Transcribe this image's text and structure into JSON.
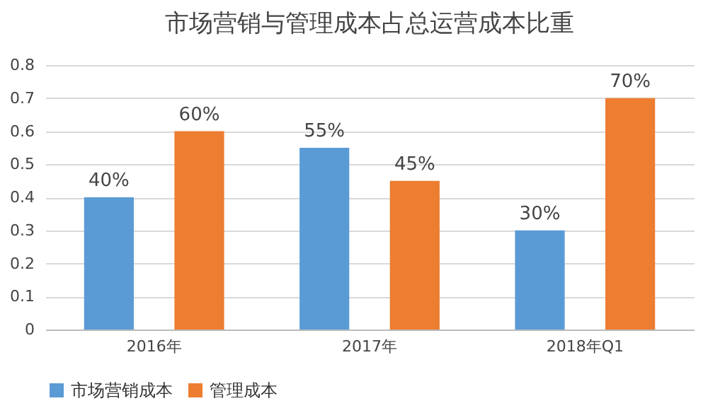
{
  "chart_data": {
    "type": "bar",
    "title": "市场营销与管理成本占总运营成本比重",
    "categories": [
      "2016年",
      "2017年",
      "2018年Q1"
    ],
    "series": [
      {
        "name": "市场营销成本",
        "color": "#5b9bd5",
        "values": [
          0.4,
          0.55,
          0.3
        ],
        "value_labels": [
          "40%",
          "55%",
          "30%"
        ]
      },
      {
        "name": "管理成本",
        "color": "#ed7d31",
        "values": [
          0.6,
          0.45,
          0.7
        ],
        "value_labels": [
          "60%",
          "45%",
          "70%"
        ]
      }
    ],
    "ylim": [
      0,
      0.8
    ],
    "yticks": [
      0,
      0.1,
      0.2,
      0.3,
      0.4,
      0.5,
      0.6,
      0.7,
      0.8
    ],
    "grid": "y",
    "legend": "bottom"
  }
}
